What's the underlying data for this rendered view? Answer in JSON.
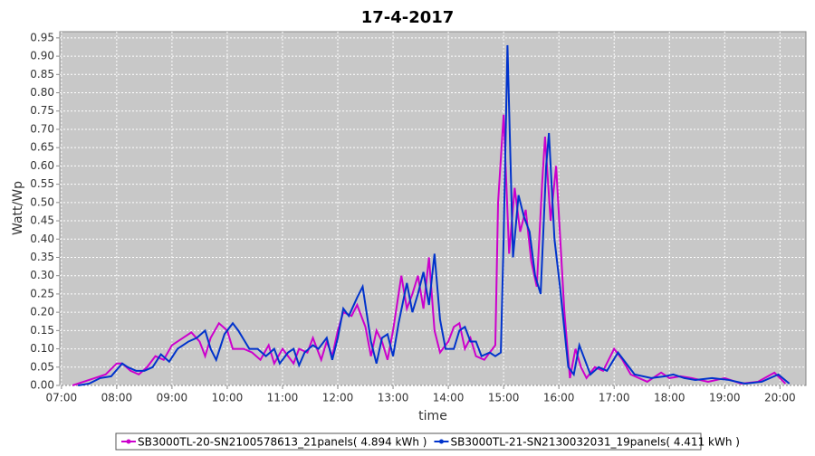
{
  "chart_data": {
    "type": "line",
    "title": "17-4-2017",
    "x_label": "time",
    "y_label": "Watt/Wp",
    "xlim": [
      6.97,
      20.47
    ],
    "xticks": [
      {
        "value": 7,
        "label": "07:00"
      },
      {
        "value": 8,
        "label": "08:00"
      },
      {
        "value": 9,
        "label": "09:00"
      },
      {
        "value": 10,
        "label": "10:00"
      },
      {
        "value": 11,
        "label": "11:00"
      },
      {
        "value": 12,
        "label": "12:00"
      },
      {
        "value": 13,
        "label": "13:00"
      },
      {
        "value": 14,
        "label": "14:00"
      },
      {
        "value": 15,
        "label": "15:00"
      },
      {
        "value": 16,
        "label": "16:00"
      },
      {
        "value": 17,
        "label": "17:00"
      },
      {
        "value": 18,
        "label": "18:00"
      },
      {
        "value": 19,
        "label": "19:00"
      },
      {
        "value": 20,
        "label": "20:00"
      }
    ],
    "ylim": [
      0,
      0.967
    ],
    "yticks": [
      {
        "value": 0,
        "label": "0.00"
      },
      {
        "value": 0.05,
        "label": "0.05"
      },
      {
        "value": 0.1,
        "label": "0.10"
      },
      {
        "value": 0.15,
        "label": "0.15"
      },
      {
        "value": 0.2,
        "label": "0.20"
      },
      {
        "value": 0.25,
        "label": "0.25"
      },
      {
        "value": 0.3,
        "label": "0.30"
      },
      {
        "value": 0.35,
        "label": "0.35"
      },
      {
        "value": 0.4,
        "label": "0.40"
      },
      {
        "value": 0.45,
        "label": "0.45"
      },
      {
        "value": 0.5,
        "label": "0.50"
      },
      {
        "value": 0.55,
        "label": "0.55"
      },
      {
        "value": 0.6,
        "label": "0.60"
      },
      {
        "value": 0.65,
        "label": "0.65"
      },
      {
        "value": 0.7,
        "label": "0.70"
      },
      {
        "value": 0.75,
        "label": "0.75"
      },
      {
        "value": 0.8,
        "label": "0.80"
      },
      {
        "value": 0.85,
        "label": "0.85"
      },
      {
        "value": 0.9,
        "label": "0.90"
      },
      {
        "value": 0.95,
        "label": "0.95"
      }
    ],
    "grid": true,
    "series": [
      {
        "name": "SB3000TL-20-SN2100578613_21panels( 4.894 kWh )",
        "color": "#cc00cc",
        "x": [
          7.2,
          7.4,
          7.6,
          7.8,
          8.0,
          8.1,
          8.25,
          8.4,
          8.55,
          8.7,
          8.85,
          9.0,
          9.2,
          9.35,
          9.5,
          9.6,
          9.7,
          9.85,
          10.0,
          10.1,
          10.3,
          10.45,
          10.6,
          10.75,
          10.85,
          11.0,
          11.1,
          11.2,
          11.3,
          11.45,
          11.55,
          11.7,
          11.8,
          11.9,
          12.0,
          12.1,
          12.25,
          12.35,
          12.5,
          12.6,
          12.7,
          12.8,
          12.9,
          13.0,
          13.15,
          13.25,
          13.35,
          13.45,
          13.55,
          13.65,
          13.75,
          13.85,
          14.0,
          14.1,
          14.2,
          14.3,
          14.4,
          14.5,
          14.65,
          14.75,
          14.85,
          14.9,
          15.0,
          15.1,
          15.2,
          15.3,
          15.4,
          15.5,
          15.6,
          15.7,
          15.75,
          15.85,
          15.95,
          16.1,
          16.2,
          16.3,
          16.4,
          16.5,
          16.65,
          16.8,
          17.0,
          17.15,
          17.3,
          17.6,
          17.85,
          18.0,
          18.2,
          18.4,
          18.7,
          19.0,
          19.3,
          19.6,
          19.9,
          20.1
        ],
        "values": [
          0,
          0.01,
          0.02,
          0.03,
          0.06,
          0.06,
          0.04,
          0.03,
          0.05,
          0.08,
          0.07,
          0.11,
          0.13,
          0.145,
          0.12,
          0.08,
          0.13,
          0.17,
          0.15,
          0.1,
          0.1,
          0.09,
          0.07,
          0.11,
          0.06,
          0.1,
          0.08,
          0.06,
          0.1,
          0.09,
          0.13,
          0.07,
          0.12,
          0.08,
          0.15,
          0.2,
          0.19,
          0.22,
          0.16,
          0.08,
          0.15,
          0.12,
          0.07,
          0.15,
          0.3,
          0.21,
          0.25,
          0.3,
          0.21,
          0.35,
          0.15,
          0.09,
          0.12,
          0.16,
          0.17,
          0.1,
          0.13,
          0.08,
          0.07,
          0.09,
          0.11,
          0.5,
          0.74,
          0.36,
          0.54,
          0.42,
          0.48,
          0.34,
          0.27,
          0.56,
          0.68,
          0.45,
          0.6,
          0.2,
          0.02,
          0.1,
          0.05,
          0.02,
          0.05,
          0.04,
          0.1,
          0.07,
          0.03,
          0.01,
          0.035,
          0.02,
          0.025,
          0.02,
          0.01,
          0.02,
          0.005,
          0.01,
          0.035,
          0.005
        ]
      },
      {
        "name": "SB3000TL-21-SN2130032031_19panels( 4.411 kWh )",
        "color": "#0033cc",
        "x": [
          7.3,
          7.5,
          7.7,
          7.9,
          8.1,
          8.2,
          8.35,
          8.5,
          8.65,
          8.8,
          8.95,
          9.1,
          9.3,
          9.45,
          9.6,
          9.7,
          9.8,
          9.95,
          10.1,
          10.2,
          10.4,
          10.55,
          10.7,
          10.85,
          10.95,
          11.1,
          11.2,
          11.3,
          11.4,
          11.55,
          11.65,
          11.8,
          11.9,
          12.0,
          12.1,
          12.2,
          12.35,
          12.45,
          12.6,
          12.7,
          12.8,
          12.9,
          13.0,
          13.1,
          13.25,
          13.35,
          13.45,
          13.55,
          13.65,
          13.75,
          13.85,
          13.95,
          14.1,
          14.2,
          14.3,
          14.4,
          14.5,
          14.6,
          14.75,
          14.85,
          14.95,
          15.0,
          15.07,
          15.17,
          15.27,
          15.37,
          15.47,
          15.57,
          15.67,
          15.77,
          15.82,
          15.92,
          16.02,
          16.17,
          16.27,
          16.37,
          16.47,
          16.57,
          16.72,
          16.87,
          17.07,
          17.22,
          17.37,
          17.67,
          17.92,
          18.07,
          18.27,
          18.47,
          18.77,
          19.07,
          19.37,
          19.67,
          19.97,
          20.17
        ],
        "values": [
          0,
          0.005,
          0.02,
          0.025,
          0.06,
          0.05,
          0.04,
          0.04,
          0.05,
          0.085,
          0.065,
          0.1,
          0.12,
          0.13,
          0.15,
          0.1,
          0.07,
          0.14,
          0.17,
          0.15,
          0.1,
          0.1,
          0.08,
          0.1,
          0.06,
          0.09,
          0.1,
          0.055,
          0.09,
          0.11,
          0.1,
          0.13,
          0.07,
          0.13,
          0.21,
          0.19,
          0.24,
          0.27,
          0.12,
          0.06,
          0.13,
          0.14,
          0.08,
          0.17,
          0.28,
          0.2,
          0.25,
          0.31,
          0.22,
          0.36,
          0.18,
          0.1,
          0.1,
          0.15,
          0.16,
          0.12,
          0.12,
          0.08,
          0.09,
          0.08,
          0.09,
          0.4,
          0.93,
          0.35,
          0.52,
          0.46,
          0.42,
          0.3,
          0.25,
          0.6,
          0.69,
          0.4,
          0.27,
          0.05,
          0.03,
          0.11,
          0.07,
          0.03,
          0.05,
          0.04,
          0.09,
          0.06,
          0.03,
          0.02,
          0.025,
          0.03,
          0.02,
          0.015,
          0.02,
          0.015,
          0.005,
          0.01,
          0.03,
          0.005
        ]
      }
    ]
  }
}
